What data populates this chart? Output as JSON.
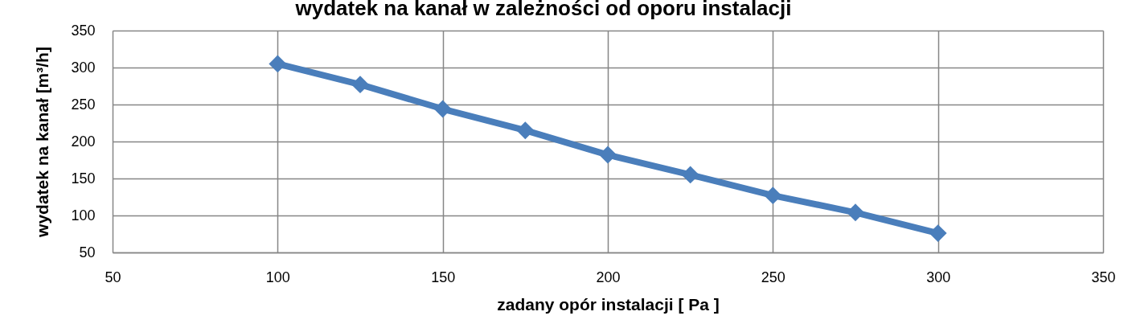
{
  "chart_data": {
    "type": "line",
    "title": "wydatek na kanał w zależności od oporu instalacji",
    "xlabel": "zadany opór instalacji [ Pa ]",
    "ylabel": "wydatek na kanał [m³/h]",
    "x": [
      100,
      125,
      150,
      175,
      200,
      225,
      250,
      275,
      300
    ],
    "series": [
      {
        "color": "#4a7ebb",
        "values": [
          305,
          277,
          244,
          215,
          182,
          155,
          127,
          104,
          76
        ]
      }
    ],
    "xlim": [
      50,
      350
    ],
    "xticks": [
      50,
      100,
      150,
      200,
      250,
      300,
      350
    ],
    "ylim": [
      50,
      350
    ],
    "yticks": [
      50,
      100,
      150,
      200,
      250,
      300,
      350
    ],
    "grid": true,
    "marker": "diamond",
    "line_style": "solid"
  }
}
